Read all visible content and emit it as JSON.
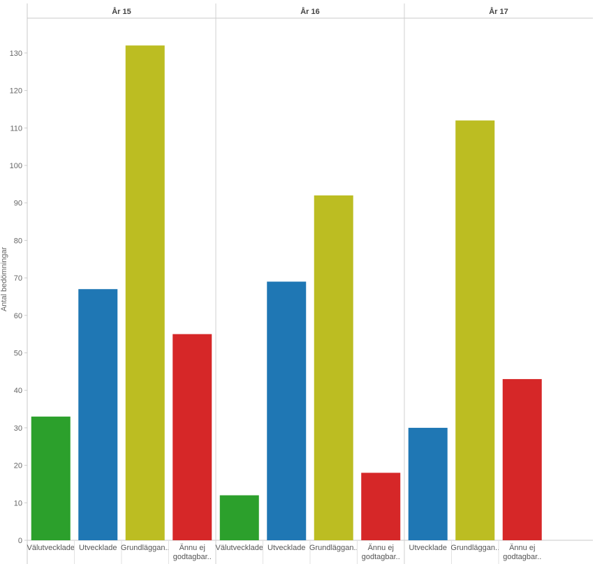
{
  "chart_data": {
    "type": "bar",
    "ylabel": "Antal bedömningar",
    "ylim": [
      0,
      140
    ],
    "yticks": [
      0,
      10,
      20,
      30,
      40,
      50,
      60,
      70,
      80,
      90,
      100,
      110,
      120,
      130
    ],
    "colors": {
      "Välutvecklade": "#2ca02c",
      "Utvecklade": "#1f77b4",
      "Grundläggande": "#bcbd22",
      "Ännu ej godtagbara": "#d62728"
    },
    "panels": [
      {
        "title": "År 15",
        "bars": [
          {
            "category": "Välutvecklade",
            "label": [
              "Välutvecklade"
            ],
            "value": 33
          },
          {
            "category": "Utvecklade",
            "label": [
              "Utvecklade"
            ],
            "value": 67
          },
          {
            "category": "Grundläggande",
            "label": [
              "Grundläggan.."
            ],
            "value": 132
          },
          {
            "category": "Ännu ej godtagbara",
            "label": [
              "Ännu ej",
              "godtagbar.."
            ],
            "value": 55
          }
        ]
      },
      {
        "title": "År 16",
        "bars": [
          {
            "category": "Välutvecklade",
            "label": [
              "Välutvecklade"
            ],
            "value": 12
          },
          {
            "category": "Utvecklade",
            "label": [
              "Utvecklade"
            ],
            "value": 69
          },
          {
            "category": "Grundläggande",
            "label": [
              "Grundläggan.."
            ],
            "value": 92
          },
          {
            "category": "Ännu ej godtagbara",
            "label": [
              "Ännu ej",
              "godtagbar.."
            ],
            "value": 18
          }
        ]
      },
      {
        "title": "År 17",
        "bars": [
          {
            "category": "Utvecklade",
            "label": [
              "Utvecklade"
            ],
            "value": 30
          },
          {
            "category": "Grundläggande",
            "label": [
              "Grundläggan.."
            ],
            "value": 112
          },
          {
            "category": "Ännu ej godtagbara",
            "label": [
              "Ännu ej",
              "godtagbar.."
            ],
            "value": 43
          }
        ]
      }
    ]
  }
}
